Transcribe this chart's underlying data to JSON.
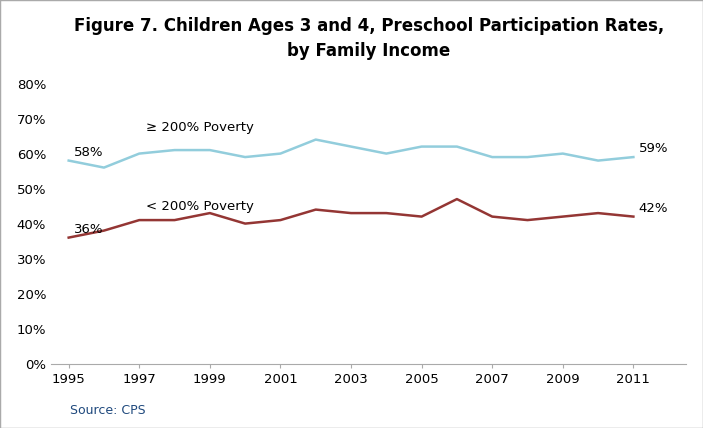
{
  "title": "Figure 7. Children Ages 3 and 4, Preschool Participation Rates,\nby Family Income",
  "source": "Source: CPS",
  "years": [
    1995,
    1996,
    1997,
    1998,
    1999,
    2000,
    2001,
    2002,
    2003,
    2004,
    2005,
    2006,
    2007,
    2008,
    2009,
    2010,
    2011
  ],
  "above200": [
    0.58,
    0.56,
    0.6,
    0.61,
    0.61,
    0.59,
    0.6,
    0.64,
    0.62,
    0.6,
    0.62,
    0.62,
    0.59,
    0.59,
    0.6,
    0.58,
    0.59
  ],
  "below200": [
    0.36,
    0.38,
    0.41,
    0.41,
    0.43,
    0.4,
    0.41,
    0.44,
    0.43,
    0.43,
    0.42,
    0.47,
    0.42,
    0.41,
    0.42,
    0.43,
    0.42
  ],
  "above200_color": "#92CDDC",
  "below200_color": "#943634",
  "above200_label": "≥ 200% Poverty",
  "below200_label": "< 200% Poverty",
  "start_label_above": "58%",
  "end_label_above": "59%",
  "start_label_below": "36%",
  "end_label_below": "42%",
  "xticks": [
    1995,
    1997,
    1999,
    2001,
    2003,
    2005,
    2007,
    2009,
    2011
  ],
  "yticks": [
    0.0,
    0.1,
    0.2,
    0.3,
    0.4,
    0.5,
    0.6,
    0.7,
    0.8
  ],
  "ylim": [
    0.0,
    0.84
  ],
  "xlim": [
    1994.5,
    2012.5
  ],
  "background_color": "#ffffff",
  "title_fontsize": 12,
  "label_fontsize": 9.5,
  "tick_fontsize": 9.5,
  "source_color": "#1F497D",
  "source_fontsize": 9,
  "above200_inline_x": 1997.2,
  "above200_inline_y": 0.675,
  "below200_inline_x": 1997.2,
  "below200_inline_y": 0.448
}
